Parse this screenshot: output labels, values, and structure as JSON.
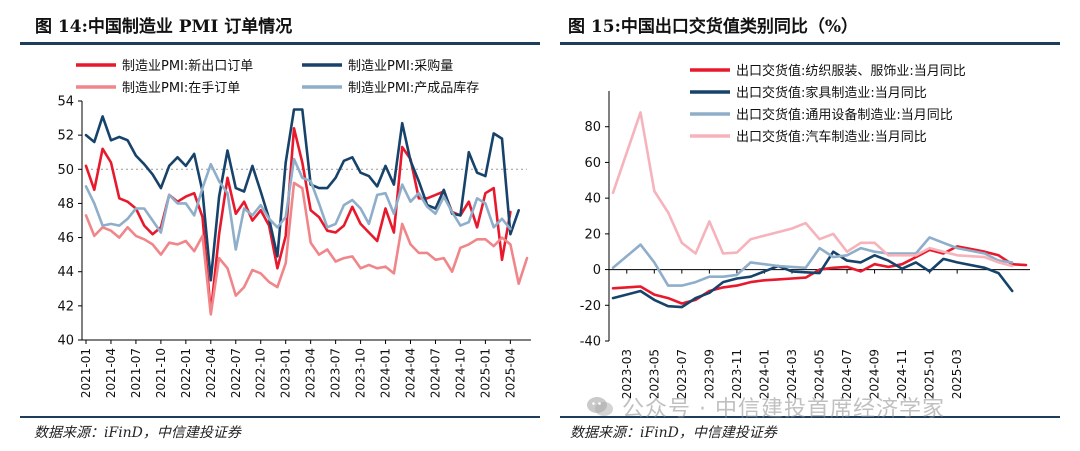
{
  "left": {
    "title": "图 14:中国制造业 PMI 订单情况",
    "source": "数据来源：iFinD，中信建投证券"
  },
  "right": {
    "title": "图 15:中国出口交货值类别同比（%）",
    "source": "数据来源：iFinD，中信建投证券"
  },
  "watermark": {
    "text": "公众号 · 中信建投首席经济学家",
    "icon": "wechat-icon"
  },
  "chart_data": [
    {
      "type": "line",
      "title": "图 14:中国制造业 PMI 订单情况",
      "xlabel": "",
      "ylabel": "",
      "ylim": [
        40,
        54
      ],
      "yticks": [
        40,
        42,
        44,
        46,
        48,
        50,
        52,
        54
      ],
      "xtick_labels": [
        "2021-01",
        "2021-04",
        "2021-07",
        "2021-10",
        "2022-01",
        "2022-04",
        "2022-07",
        "2022-10",
        "2023-01",
        "2023-04",
        "2023-07",
        "2023-10",
        "2024-01",
        "2024-04",
        "2024-07",
        "2024-10",
        "2025-01",
        "2025-04"
      ],
      "x_start": "2021-01",
      "reference_line": 50,
      "legend_position": "top",
      "grid": false,
      "series": [
        {
          "name": "制造业PMI:新出口订单",
          "color": "#e8192c",
          "values": [
            50.2,
            48.8,
            51.2,
            50.4,
            48.3,
            48.1,
            47.7,
            46.7,
            46.2,
            46.6,
            48.5,
            48.1,
            48.4,
            48.6,
            47.2,
            41.6,
            46.2,
            49.5,
            47.4,
            48.1,
            47.0,
            47.6,
            46.7,
            44.2,
            46.1,
            52.4,
            50.4,
            47.6,
            47.2,
            46.4,
            46.3,
            46.7,
            47.8,
            46.8,
            46.3,
            45.8,
            47.7,
            46.3,
            51.3,
            50.6,
            48.3,
            48.3,
            48.5,
            48.7,
            47.5,
            47.3,
            48.1,
            46.6,
            48.6,
            48.9,
            44.7,
            47.5
          ]
        },
        {
          "name": "制造业PMI:采购量",
          "color": "#17436b",
          "values": [
            52.0,
            51.6,
            53.1,
            51.7,
            51.9,
            51.7,
            50.8,
            50.3,
            49.7,
            48.9,
            50.2,
            50.7,
            50.2,
            50.9,
            48.7,
            43.5,
            48.4,
            51.1,
            48.9,
            48.7,
            50.2,
            48.7,
            47.1,
            44.9,
            50.4,
            53.5,
            53.5,
            49.1,
            48.9,
            48.9,
            49.5,
            50.5,
            50.7,
            49.8,
            49.6,
            49.0,
            50.2,
            49.1,
            52.7,
            50.5,
            49.3,
            47.9,
            47.7,
            48.8,
            47.4,
            47.3,
            51.0,
            49.8,
            49.6,
            52.1,
            51.8,
            46.2,
            47.6
          ]
        },
        {
          "name": "制造业PMI:在手订单",
          "color": "#f0868a",
          "values": [
            47.3,
            46.1,
            46.6,
            46.4,
            46.0,
            46.6,
            46.1,
            45.9,
            45.6,
            45.0,
            45.7,
            45.6,
            45.8,
            45.2,
            46.1,
            41.5,
            44.8,
            44.2,
            42.6,
            43.1,
            44.1,
            43.9,
            43.4,
            43.1,
            44.5,
            49.2,
            48.9,
            45.7,
            45.0,
            45.3,
            44.6,
            44.8,
            44.9,
            44.2,
            44.4,
            44.2,
            44.3,
            43.9,
            46.8,
            45.6,
            45.1,
            45.1,
            44.7,
            44.8,
            44.0,
            45.4,
            45.6,
            45.9,
            45.9,
            45.5,
            46.0,
            45.6,
            43.3,
            44.8
          ]
        },
        {
          "name": "制造业PMI:产成品库存",
          "color": "#8eaec9",
          "values": [
            49.0,
            48.0,
            46.7,
            46.8,
            46.7,
            47.1,
            47.7,
            47.7,
            47.0,
            46.3,
            48.5,
            48.0,
            48.0,
            47.3,
            48.9,
            50.3,
            49.3,
            48.6,
            45.3,
            47.7,
            47.3,
            47.9,
            47.1,
            46.6,
            47.2,
            50.6,
            49.5,
            49.3,
            48.0,
            46.6,
            46.8,
            47.9,
            48.2,
            47.7,
            46.8,
            48.5,
            48.6,
            47.4,
            49.1,
            48.1,
            48.6,
            47.8,
            47.4,
            48.4,
            47.5,
            46.7,
            46.9,
            48.3,
            48.0,
            46.6,
            47.1,
            46.5
          ]
        }
      ]
    },
    {
      "type": "line",
      "title": "图 15:中国出口交货值类别同比（%）",
      "xlabel": "",
      "ylabel": "",
      "ylim": [
        -40,
        100
      ],
      "yticks": [
        -40,
        -20,
        0,
        20,
        40,
        60,
        80
      ],
      "xtick_labels": [
        "2023-03",
        "2023-05",
        "2023-07",
        "2023-09",
        "2023-11",
        "2024-01",
        "2024-03",
        "2024-05",
        "2024-07",
        "2024-09",
        "2024-11",
        "2025-01",
        "2025-03"
      ],
      "x_start": "2023-02",
      "legend_position": "top",
      "grid": false,
      "series": [
        {
          "name": "出口交货值:纺织服装、服饰业:当月同比",
          "color": "#e8192c",
          "values": [
            -10.5,
            null,
            -9.5,
            -14,
            -16,
            -19,
            -17,
            -12,
            -10,
            -9,
            -7,
            -6,
            -5.5,
            -5,
            -4.5,
            0,
            1,
            1.5,
            -1,
            3,
            1.5,
            3,
            7,
            11,
            9,
            13,
            null,
            10,
            8,
            3,
            2.5
          ]
        },
        {
          "name": "出口交货值:家具制造业:当月同比",
          "color": "#17436b",
          "values": [
            -16,
            null,
            -12,
            -17,
            -20.5,
            -21,
            -16,
            -13,
            -7,
            -5,
            -4,
            -1,
            2,
            -1,
            -1.5,
            -2,
            10,
            5,
            4,
            8,
            5,
            0.5,
            4,
            -1,
            6,
            4,
            null,
            1,
            -2,
            -12,
            null
          ]
        },
        {
          "name": "出口交货值:通用设备制造业:当月同比",
          "color": "#8eaec9",
          "values": [
            1,
            null,
            14,
            4,
            -9,
            -9,
            -7,
            -4,
            -4,
            -3,
            4,
            3,
            2,
            1.5,
            1,
            12,
            7,
            8,
            12,
            10,
            9,
            9,
            9,
            18,
            15,
            12,
            null,
            9,
            5,
            4,
            null
          ]
        },
        {
          "name": "出口交货值:汽车制造业:当月同比",
          "color": "#f6b3bb",
          "values": [
            43,
            null,
            88,
            44,
            32,
            15,
            9,
            27,
            9,
            9.5,
            17,
            19,
            21,
            23,
            26,
            17,
            20,
            10,
            15,
            15,
            8,
            8,
            8,
            12,
            10,
            8,
            null,
            7,
            4,
            2,
            null
          ]
        }
      ]
    }
  ]
}
